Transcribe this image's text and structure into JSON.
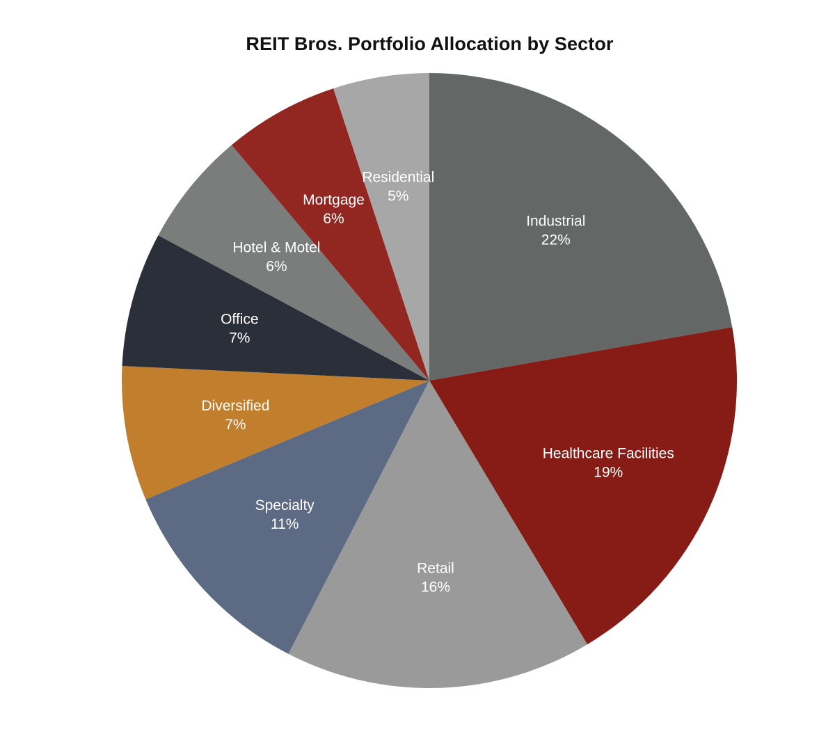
{
  "chart_data": {
    "type": "pie",
    "title": "REIT Bros. Portfolio Allocation by Sector",
    "start_angle_deg": 0,
    "direction": "clockwise",
    "slices": [
      {
        "label": "Industrial",
        "value": 22,
        "value_label": "22%",
        "color": "#636866"
      },
      {
        "label": "Healthcare Facilities",
        "value": 19,
        "value_label": "19%",
        "color": "#861c15"
      },
      {
        "label": "Retail",
        "value": 16,
        "value_label": "16%",
        "color": "#9a9a9a"
      },
      {
        "label": "Specialty",
        "value": 11,
        "value_label": "11%",
        "color": "#5c6b83"
      },
      {
        "label": "Diversified",
        "value": 7,
        "value_label": "7%",
        "color": "#c17e2d"
      },
      {
        "label": "Office",
        "value": 7,
        "value_label": "7%",
        "color": "#2b2f3a"
      },
      {
        "label": "Hotel & Motel",
        "value": 6,
        "value_label": "6%",
        "color": "#7a7d7b"
      },
      {
        "label": "Mortgage",
        "value": 6,
        "value_label": "6%",
        "color": "#922620"
      },
      {
        "label": "Residential",
        "value": 5,
        "value_label": "5%",
        "color": "#a7a7a7"
      }
    ]
  }
}
